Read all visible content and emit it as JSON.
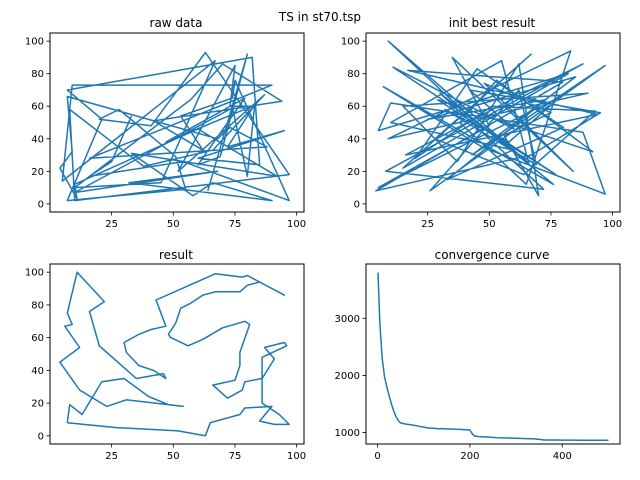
{
  "figure": {
    "suptitle": "TS in st70.tsp",
    "line_color": "#1f77b4"
  },
  "chart_data": [
    {
      "type": "line",
      "title": "raw data",
      "xlabel": "",
      "ylabel": "",
      "xlim": [
        0,
        103
      ],
      "ylim": [
        -5,
        105
      ],
      "xticks": [
        25,
        50,
        75,
        100
      ],
      "yticks": [
        0,
        20,
        40,
        60,
        80,
        100
      ],
      "series": [
        {
          "x": [
            64,
            80,
            69,
            60,
            79,
            47,
            82,
            73,
            75,
            52,
            87,
            66,
            38,
            8,
            10,
            97,
            63,
            41,
            20,
            28,
            51,
            55,
            7,
            21,
            7,
            82,
            85,
            60,
            95,
            72,
            83,
            80,
            74,
            10,
            68,
            32,
            90,
            66,
            58,
            33,
            92,
            60,
            10,
            11,
            4,
            9,
            7,
            68,
            73,
            88,
            16,
            90,
            9,
            5,
            67,
            45,
            10,
            57,
            70,
            94,
            42,
            62,
            53,
            74,
            75,
            97,
            54,
            16,
            25,
            33
          ],
          "y": [
            8,
            92,
            29,
            24,
            65,
            38,
            60,
            60,
            85,
            20,
            67,
            33,
            23,
            58,
            2,
            18,
            93,
            48,
            52,
            58,
            29,
            9,
            2,
            52,
            70,
            90,
            24,
            28,
            45,
            35,
            61,
            17,
            59,
            7,
            20,
            13,
            2,
            13,
            5,
            31,
            17,
            46,
            12,
            3,
            22,
            32,
            66,
            40,
            47,
            35,
            28,
            73,
            73,
            14,
            88,
            13,
            10,
            64,
            86,
            63,
            51,
            33,
            54,
            65,
            76,
            2,
            26,
            17,
            26,
            54
          ]
        }
      ]
    },
    {
      "type": "line",
      "title": "init best result",
      "xlabel": "",
      "ylabel": "",
      "xlim": [
        0,
        103
      ],
      "ylim": [
        -5,
        105
      ],
      "xticks": [
        25,
        50,
        75,
        100
      ],
      "yticks": [
        0,
        20,
        40,
        60,
        80,
        100
      ],
      "series": [
        {
          "x": [
            80,
            17,
            94,
            16,
            60,
            88,
            8,
            72,
            30,
            60,
            10,
            55,
            66,
            9,
            41,
            76,
            7,
            47,
            97,
            88,
            10,
            5,
            82,
            15,
            67,
            28,
            64,
            93,
            51,
            20,
            45,
            80,
            33,
            73,
            25,
            85,
            43,
            97,
            26,
            62,
            69,
            32,
            58,
            79,
            5,
            50,
            35,
            84,
            48,
            75,
            56,
            70,
            62,
            37,
            15,
            90,
            9,
            83,
            65,
            38,
            53,
            92,
            29,
            77,
            11,
            60,
            42,
            95,
            67,
            4,
            80
          ],
          "y": [
            75,
            82,
            55,
            30,
            65,
            86,
            20,
            9,
            68,
            33,
            50,
            88,
            25,
            100,
            55,
            12,
            72,
            35,
            6,
            44,
            62,
            45,
            80,
            22,
            92,
            40,
            18,
            57,
            60,
            28,
            83,
            47,
            15,
            64,
            52,
            78,
            30,
            85,
            8,
            70,
            24,
            58,
            38,
            66,
            10,
            48,
            90,
            20,
            74,
            56,
            42,
            5,
            86,
            26,
            60,
            68,
            40,
            94,
            12,
            50,
            76,
            32,
            64,
            18,
            84,
            46,
            70,
            56,
            30,
            8,
            75
          ]
        }
      ]
    },
    {
      "type": "line",
      "title": "result",
      "xlabel": "",
      "ylabel": "",
      "xlim": [
        0,
        103
      ],
      "ylim": [
        -5,
        105
      ],
      "xticks": [
        25,
        50,
        75,
        100
      ],
      "yticks": [
        0,
        20,
        40,
        60,
        80,
        100
      ],
      "series": [
        {
          "x": [
            7,
            27,
            52,
            63,
            65,
            77,
            79,
            90,
            85,
            91,
            97,
            93,
            86,
            86,
            96,
            95,
            87,
            91,
            86,
            79,
            78,
            72,
            66,
            75,
            77,
            77,
            81,
            79,
            70,
            62,
            56,
            49,
            48,
            51,
            53,
            57,
            62,
            67,
            77,
            80,
            85,
            95,
            80,
            78,
            67,
            55,
            43,
            47,
            41,
            36,
            30,
            31,
            36,
            42,
            47,
            46,
            35,
            20,
            16,
            22,
            11,
            7,
            9,
            6,
            12,
            4,
            12,
            23,
            31,
            54,
            48,
            40,
            30,
            21,
            13,
            8,
            7
          ],
          "y": [
            8,
            5,
            3,
            0,
            8,
            13,
            17,
            18,
            9,
            7,
            7,
            13,
            20,
            48,
            55,
            57,
            54,
            47,
            35,
            33,
            28,
            23,
            31,
            34,
            43,
            51,
            68,
            70,
            66,
            59,
            55,
            60,
            62,
            69,
            78,
            81,
            86,
            88,
            88,
            92,
            94,
            86,
            98,
            97,
            99,
            91,
            83,
            67,
            65,
            62,
            57,
            51,
            43,
            40,
            35,
            38,
            35,
            55,
            76,
            82,
            100,
            75,
            68,
            67,
            54,
            45,
            28,
            18,
            22,
            18,
            19,
            24,
            35,
            33,
            13,
            19,
            8
          ]
        }
      ]
    },
    {
      "type": "line",
      "title": "convergence curve",
      "xlabel": "",
      "ylabel": "",
      "xlim": [
        -25,
        525
      ],
      "ylim": [
        800,
        3950
      ],
      "xticks": [
        0,
        200,
        400
      ],
      "yticks": [
        1000,
        2000,
        3000
      ],
      "series": [
        {
          "x": [
            1,
            5,
            10,
            15,
            20,
            25,
            30,
            35,
            40,
            45,
            50,
            60,
            70,
            80,
            90,
            100,
            110,
            120,
            130,
            140,
            150,
            160,
            170,
            180,
            190,
            200,
            205,
            210,
            220,
            240,
            260,
            280,
            300,
            320,
            340,
            350,
            360,
            380,
            400,
            420,
            440,
            460,
            480,
            500
          ],
          "y": [
            3800,
            2900,
            2300,
            1980,
            1800,
            1650,
            1500,
            1380,
            1280,
            1210,
            1170,
            1150,
            1140,
            1125,
            1110,
            1095,
            1080,
            1075,
            1070,
            1068,
            1065,
            1062,
            1058,
            1055,
            1050,
            1045,
            980,
            940,
            930,
            920,
            910,
            905,
            900,
            895,
            890,
            880,
            870,
            870,
            868,
            868,
            866,
            866,
            865,
            865
          ]
        }
      ]
    }
  ]
}
